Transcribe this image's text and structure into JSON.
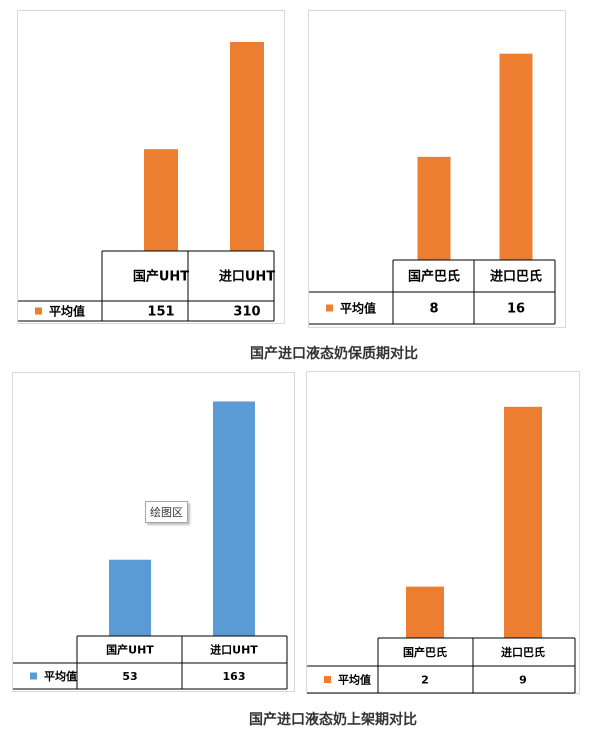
{
  "captions": {
    "shelf_life": "国产进口液态奶保质期对比",
    "listing_period": "国产进口液态奶上架期对比"
  },
  "tooltip": {
    "label": "绘图区"
  },
  "chart_data": [
    {
      "type": "bar",
      "categories": [
        "国产UHT",
        "进口UHT"
      ],
      "series": [
        {
          "name": "平均值",
          "values": [
            151,
            310
          ]
        }
      ],
      "color": "#ED7D31",
      "ylim": [
        0,
        350
      ],
      "legend": "data-table"
    },
    {
      "type": "bar",
      "categories": [
        "国产巴氏",
        "进口巴氏"
      ],
      "series": [
        {
          "name": "平均值",
          "values": [
            8,
            16
          ]
        }
      ],
      "color": "#ED7D31",
      "ylim": [
        0,
        19
      ],
      "legend": "data-table"
    },
    {
      "type": "bar",
      "categories": [
        "国产UHT",
        "进口UHT"
      ],
      "series": [
        {
          "name": "平均值",
          "values": [
            53,
            163
          ]
        }
      ],
      "color": "#5B9BD5",
      "ylim": [
        0,
        180
      ],
      "legend": "data-table"
    },
    {
      "type": "bar",
      "categories": [
        "国产巴氏",
        "进口巴氏"
      ],
      "series": [
        {
          "name": "平均值",
          "values": [
            2,
            9
          ]
        }
      ],
      "color": "#ED7D31",
      "ylim": [
        0,
        10.2
      ],
      "legend": "data-table"
    }
  ]
}
